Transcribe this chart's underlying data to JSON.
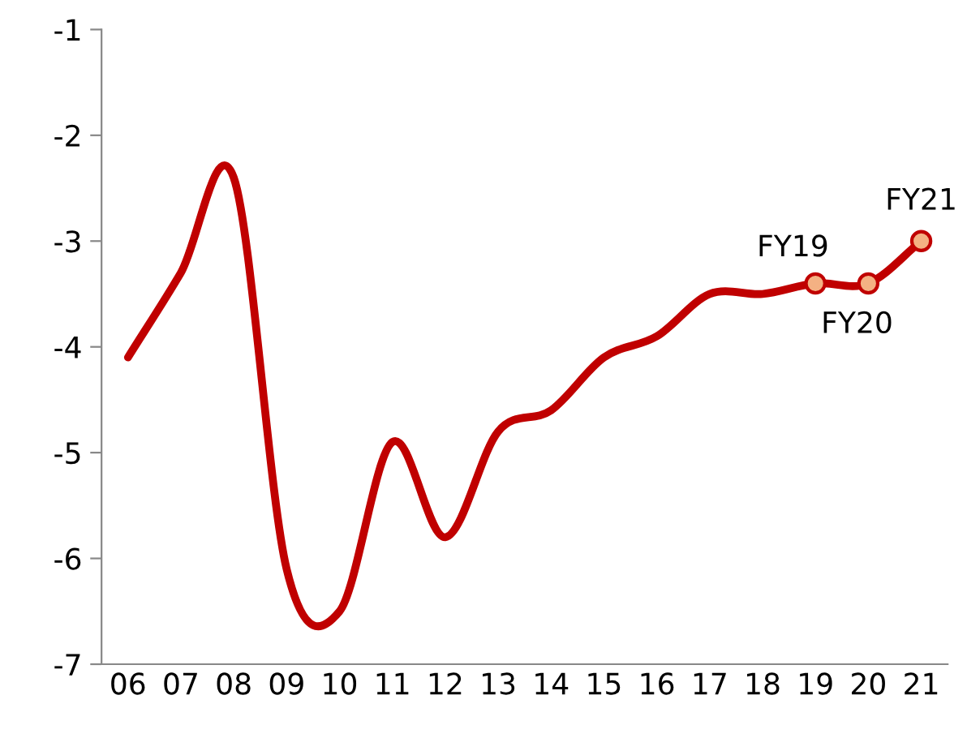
{
  "chart_data": {
    "type": "line",
    "categories": [
      "06",
      "07",
      "08",
      "09",
      "10",
      "11",
      "12",
      "13",
      "14",
      "15",
      "16",
      "17",
      "18",
      "19",
      "20",
      "21"
    ],
    "series": [
      {
        "color": "#c00000",
        "marker": "none",
        "values": [
          -4.1,
          -3.3,
          -2.4,
          -6.1,
          -6.5,
          -4.9,
          -5.8,
          -4.8,
          -4.6,
          -4.1,
          -3.9,
          -3.5,
          -3.5,
          -3.4,
          -3.4,
          -3.0
        ]
      },
      {
        "type": "scatter",
        "color": "#f4b183",
        "x": [
          "19",
          "20",
          "21"
        ],
        "values": [
          -3.4,
          -3.4,
          -3.0
        ]
      }
    ],
    "ylim": [
      -7,
      -1
    ],
    "yticks": [
      -7,
      -6,
      -5,
      -4,
      -3,
      -2,
      -1
    ],
    "grid": false,
    "annotations": [
      {
        "text": "FY19",
        "x": "19",
        "y": -3.4
      },
      {
        "text": "FY20",
        "x": "20",
        "y": -3.4
      },
      {
        "text": "FY21",
        "x": "21",
        "y": -3.0
      }
    ]
  }
}
